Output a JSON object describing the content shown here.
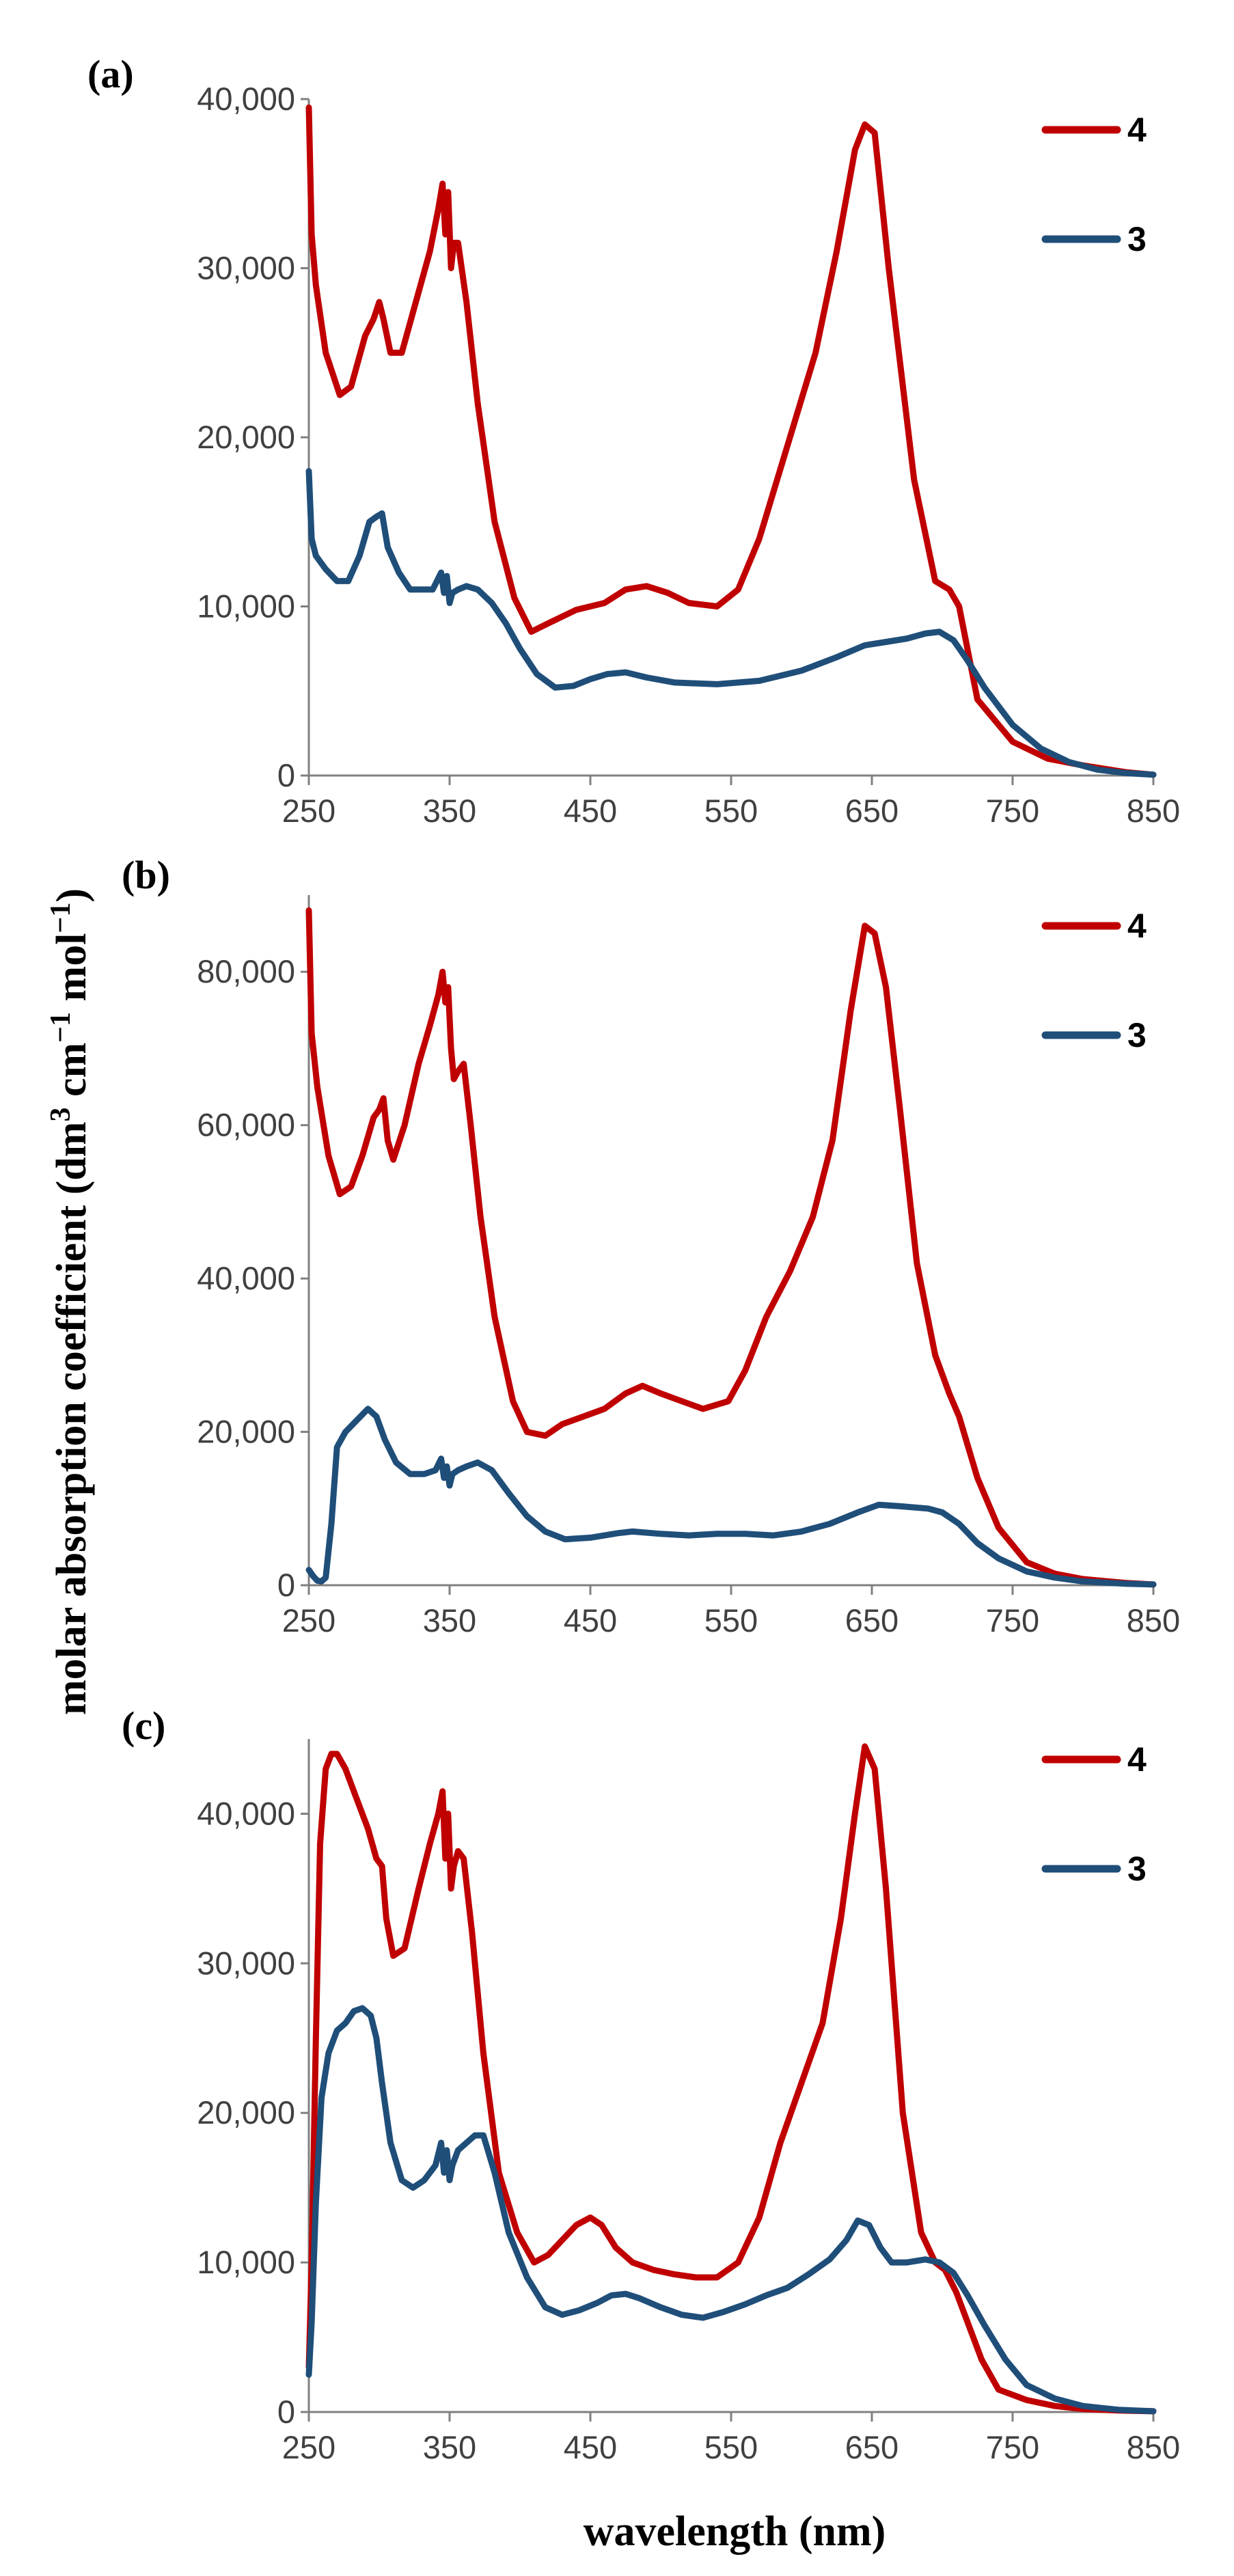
{
  "figure": {
    "ylabel": "molar absorption coefficient (dm",
    "ylabel_sup1": "3",
    "ylabel_mid": " cm",
    "ylabel_sup2": "−1",
    "ylabel_mid2": " mol",
    "ylabel_sup3": "−1",
    "ylabel_end": ")",
    "xlabel": "wavelength (nm)"
  },
  "colors": {
    "series_4": "#C00000",
    "series_3": "#1F4E79",
    "axis": "#808080"
  },
  "chart_data": [
    {
      "type": "line",
      "panel_label": "(a)",
      "xlabel": "wavelength (nm)",
      "ylabel": "molar absorption coefficient (dm3 cm−1 mol−1)",
      "xlim": [
        250,
        850
      ],
      "ylim": [
        0,
        40000
      ],
      "xticks": [
        250,
        350,
        450,
        550,
        650,
        750,
        850
      ],
      "xtick_labels": [
        "250",
        "350",
        "450",
        "550",
        "650",
        "750",
        "850"
      ],
      "yticks": [
        0,
        10000,
        20000,
        30000,
        40000
      ],
      "ytick_labels": [
        "0",
        "10,000",
        "20,000",
        "30,000",
        "40,000"
      ],
      "legend": "right",
      "series": [
        {
          "name": "4",
          "x": [
            250,
            252,
            255,
            262,
            272,
            280,
            290,
            296,
            300,
            303,
            308,
            316,
            326,
            336,
            342,
            345,
            347,
            349,
            351,
            353,
            356,
            362,
            370,
            382,
            396,
            408,
            420,
            440,
            460,
            475,
            490,
            505,
            520,
            540,
            555,
            570,
            590,
            610,
            625,
            638,
            645,
            652,
            662,
            680,
            695,
            705,
            712,
            725,
            750,
            775,
            800,
            830,
            850
          ],
          "y": [
            39500,
            32000,
            29000,
            25000,
            22500,
            23000,
            26000,
            27000,
            28000,
            27000,
            25000,
            25000,
            28000,
            31000,
            33500,
            35000,
            32000,
            34500,
            30000,
            31500,
            31500,
            28000,
            22000,
            15000,
            10500,
            8500,
            9000,
            9800,
            10200,
            11000,
            11200,
            10800,
            10200,
            10000,
            11000,
            14000,
            19500,
            25000,
            31000,
            37000,
            38500,
            38000,
            30000,
            17500,
            11500,
            11000,
            10000,
            4500,
            2000,
            1000,
            600,
            200,
            50
          ]
        },
        {
          "name": "3",
          "x": [
            250,
            252,
            255,
            262,
            270,
            278,
            286,
            293,
            298,
            302,
            306,
            314,
            322,
            330,
            338,
            344,
            346,
            348,
            350,
            352,
            356,
            362,
            370,
            380,
            390,
            400,
            412,
            425,
            438,
            450,
            462,
            475,
            490,
            510,
            540,
            570,
            600,
            625,
            645,
            660,
            675,
            688,
            698,
            708,
            718,
            730,
            750,
            770,
            790,
            810,
            830,
            850
          ],
          "y": [
            18000,
            14000,
            13000,
            12200,
            11500,
            11500,
            13000,
            15000,
            15300,
            15500,
            13500,
            12000,
            11000,
            11000,
            11000,
            12000,
            10800,
            11800,
            10200,
            10800,
            11000,
            11200,
            11000,
            10200,
            9000,
            7500,
            6000,
            5200,
            5300,
            5700,
            6000,
            6100,
            5800,
            5500,
            5400,
            5600,
            6200,
            7000,
            7700,
            7900,
            8100,
            8400,
            8500,
            8000,
            6800,
            5200,
            3000,
            1600,
            800,
            350,
            150,
            50
          ]
        }
      ]
    },
    {
      "type": "line",
      "panel_label": "(b)",
      "xlabel": "wavelength (nm)",
      "ylabel": "molar absorption coefficient (dm3 cm−1 mol−1)",
      "xlim": [
        250,
        850
      ],
      "ylim": [
        0,
        90000
      ],
      "xticks": [
        250,
        350,
        450,
        550,
        650,
        750,
        850
      ],
      "xtick_labels": [
        "250",
        "350",
        "450",
        "550",
        "650",
        "750",
        "850"
      ],
      "yticks": [
        0,
        20000,
        40000,
        60000,
        80000
      ],
      "ytick_labels": [
        "0",
        "20,000",
        "40,000",
        "60,000",
        "80,000"
      ],
      "legend": "right",
      "series": [
        {
          "name": "4",
          "x": [
            250,
            252,
            256,
            264,
            272,
            280,
            288,
            296,
            300,
            303,
            306,
            310,
            318,
            328,
            336,
            342,
            345,
            347,
            349,
            351,
            353,
            356,
            360,
            365,
            372,
            382,
            395,
            405,
            418,
            430,
            445,
            460,
            475,
            487,
            500,
            515,
            530,
            548,
            560,
            575,
            592,
            608,
            622,
            635,
            645,
            652,
            660,
            670,
            682,
            695,
            705,
            712,
            725,
            740,
            760,
            780,
            800,
            830,
            850
          ],
          "y": [
            88000,
            72000,
            65000,
            56000,
            51000,
            52000,
            56000,
            61000,
            62000,
            63500,
            58000,
            55500,
            60000,
            68000,
            73000,
            77000,
            80000,
            76000,
            78000,
            70000,
            66000,
            67000,
            68000,
            60000,
            48000,
            35000,
            24000,
            20000,
            19500,
            21000,
            22000,
            23000,
            25000,
            26000,
            25000,
            24000,
            23000,
            24000,
            28000,
            35000,
            41000,
            48000,
            58000,
            75000,
            86000,
            85000,
            78000,
            62000,
            42000,
            30000,
            25000,
            22000,
            14000,
            7500,
            3000,
            1500,
            800,
            300,
            100
          ]
        },
        {
          "name": "3",
          "x": [
            250,
            253,
            256,
            259,
            262,
            266,
            270,
            276,
            284,
            292,
            298,
            304,
            312,
            322,
            332,
            340,
            344,
            346,
            348,
            350,
            352,
            356,
            362,
            370,
            380,
            392,
            405,
            418,
            432,
            450,
            470,
            480,
            500,
            520,
            540,
            560,
            580,
            600,
            620,
            640,
            655,
            670,
            690,
            700,
            712,
            725,
            740,
            760,
            780,
            800,
            830,
            850
          ],
          "y": [
            2000,
            1200,
            600,
            500,
            1000,
            8000,
            18000,
            20000,
            21500,
            23000,
            22000,
            19000,
            16000,
            14500,
            14500,
            15000,
            16500,
            14000,
            15500,
            13000,
            14500,
            15000,
            15500,
            16000,
            15000,
            12000,
            9000,
            7000,
            6000,
            6200,
            6800,
            7000,
            6700,
            6500,
            6700,
            6700,
            6500,
            7000,
            8000,
            9500,
            10500,
            10300,
            10000,
            9500,
            8000,
            5500,
            3500,
            1800,
            1000,
            500,
            200,
            100
          ]
        }
      ]
    },
    {
      "type": "line",
      "panel_label": "(c)",
      "xlabel": "wavelength (nm)",
      "ylabel": "molar absorption coefficient (dm3 cm−1 mol−1)",
      "xlim": [
        250,
        850
      ],
      "ylim": [
        0,
        45000
      ],
      "xticks": [
        250,
        350,
        450,
        550,
        650,
        750,
        850
      ],
      "xtick_labels": [
        "250",
        "350",
        "450",
        "550",
        "650",
        "750",
        "850"
      ],
      "yticks": [
        0,
        10000,
        20000,
        30000,
        40000
      ],
      "ytick_labels": [
        "0",
        "10,000",
        "20,000",
        "30,000",
        "40,000"
      ],
      "legend": "right",
      "series": [
        {
          "name": "4",
          "x": [
            250,
            252,
            255,
            258,
            262,
            266,
            270,
            276,
            284,
            292,
            298,
            302,
            305,
            310,
            318,
            328,
            336,
            342,
            345,
            347,
            349,
            351,
            353,
            356,
            360,
            366,
            374,
            385,
            398,
            410,
            420,
            430,
            440,
            450,
            458,
            468,
            480,
            495,
            510,
            525,
            540,
            555,
            570,
            585,
            600,
            615,
            628,
            638,
            645,
            652,
            660,
            672,
            685,
            695,
            702,
            710,
            718,
            728,
            740,
            760,
            780,
            800,
            825,
            850
          ],
          "y": [
            3000,
            10000,
            25000,
            38000,
            43000,
            44000,
            44000,
            43000,
            41000,
            39000,
            37000,
            36500,
            33000,
            30500,
            31000,
            35000,
            38000,
            40000,
            41500,
            37000,
            40000,
            35000,
            36500,
            37500,
            37000,
            32000,
            24000,
            16000,
            12000,
            10000,
            10500,
            11500,
            12500,
            13000,
            12500,
            11000,
            10000,
            9500,
            9200,
            9000,
            9000,
            10000,
            13000,
            18000,
            22000,
            26000,
            33000,
            40000,
            44500,
            43000,
            35000,
            20000,
            12000,
            10000,
            9500,
            8000,
            6000,
            3500,
            1500,
            800,
            400,
            200,
            100,
            50
          ]
        },
        {
          "name": "3",
          "x": [
            250,
            252,
            255,
            259,
            264,
            270,
            276,
            282,
            288,
            294,
            298,
            302,
            308,
            316,
            324,
            332,
            340,
            344,
            346,
            348,
            350,
            352,
            356,
            362,
            368,
            374,
            382,
            392,
            405,
            418,
            430,
            442,
            455,
            465,
            475,
            485,
            500,
            515,
            530,
            545,
            560,
            575,
            590,
            605,
            620,
            632,
            640,
            648,
            656,
            664,
            675,
            688,
            698,
            708,
            718,
            730,
            745,
            760,
            780,
            800,
            825,
            850
          ],
          "y": [
            2500,
            6000,
            14000,
            21000,
            24000,
            25500,
            26000,
            26800,
            27000,
            26500,
            25000,
            22000,
            18000,
            15500,
            15000,
            15500,
            16500,
            18000,
            16000,
            17500,
            15500,
            16500,
            17500,
            18000,
            18500,
            18500,
            16000,
            12000,
            9000,
            7000,
            6500,
            6800,
            7300,
            7800,
            7900,
            7600,
            7000,
            6500,
            6300,
            6700,
            7200,
            7800,
            8300,
            9200,
            10200,
            11500,
            12800,
            12500,
            11000,
            10000,
            10000,
            10200,
            10000,
            9300,
            7800,
            5800,
            3500,
            1800,
            900,
            400,
            150,
            50
          ]
        }
      ]
    }
  ]
}
